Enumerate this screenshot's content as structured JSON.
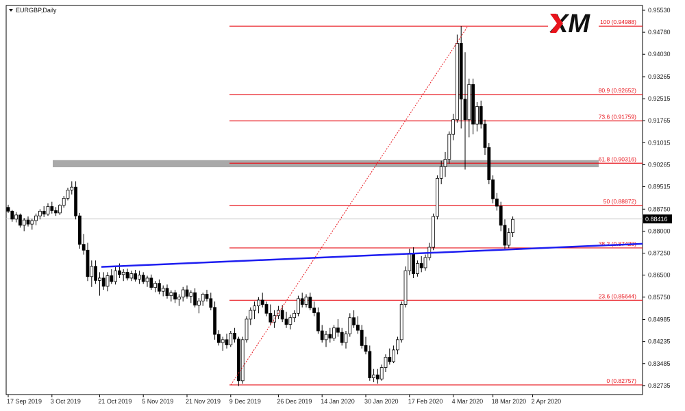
{
  "chart_data": {
    "type": "candlestick",
    "symbol_title": "EURGBP,Daily",
    "logo": "XM",
    "current_price": "0.88416",
    "ylim": [
      0.82662,
      0.9553
    ],
    "y_ticks": [
      "0.95530",
      "0.94780",
      "0.94030",
      "0.93265",
      "0.92515",
      "0.91765",
      "0.91015",
      "0.90265",
      "0.89515",
      "0.88750",
      "0.88000",
      "0.87250",
      "0.86500",
      "0.85750",
      "0.84985",
      "0.84235",
      "0.83485",
      "0.82735"
    ],
    "x_ticks": [
      "17 Sep 2019",
      "3 Oct 2019",
      "21 Oct 2019",
      "5 Nov 2019",
      "21 Nov 2019",
      "9 Dec 2019",
      "26 Dec 2019",
      "14 Jan 2020",
      "30 Jan 2020",
      "17 Feb 2020",
      "4 Mar 2020",
      "18 Mar 2020",
      "2 Apr 2020"
    ],
    "fib_levels": [
      {
        "label": "100 (0.94988)",
        "value": 0.94988
      },
      {
        "label": "80.9 (0.92652)",
        "value": 0.92652
      },
      {
        "label": "73.6 (0.91759)",
        "value": 0.91759
      },
      {
        "label": "61.8 (0.90316)",
        "value": 0.90316
      },
      {
        "label": "50 (0.88872)",
        "value": 0.88872
      },
      {
        "label": "38.2 (0.87428)",
        "value": 0.87428
      },
      {
        "label": "23.6 (0.85644)",
        "value": 0.85644
      },
      {
        "label": "0 (0.82757)",
        "value": 0.82757
      }
    ],
    "resistance_zone": [
      0.9018,
      0.9042
    ],
    "trendline": {
      "from": {
        "x": "21 Oct 2019",
        "y": 0.8678
      },
      "to": {
        "x": "7 Apr 2020",
        "y": 0.8757
      }
    },
    "fib_swing": {
      "from": {
        "x": "10 Dec 2019",
        "y": 0.82757
      },
      "to": {
        "x": "19 Mar 2020",
        "y": 0.94988
      }
    },
    "candles": [
      [
        0.8881,
        0.889,
        0.8862,
        0.8868
      ],
      [
        0.8868,
        0.8872,
        0.8832,
        0.8841
      ],
      [
        0.8841,
        0.8865,
        0.883,
        0.8855
      ],
      [
        0.8855,
        0.886,
        0.8812,
        0.882
      ],
      [
        0.882,
        0.8845,
        0.88,
        0.8838
      ],
      [
        0.8838,
        0.885,
        0.8816,
        0.8824
      ],
      [
        0.8824,
        0.8842,
        0.8805,
        0.8836
      ],
      [
        0.8836,
        0.886,
        0.882,
        0.8852
      ],
      [
        0.8852,
        0.8875,
        0.884,
        0.8868
      ],
      [
        0.8868,
        0.8885,
        0.8848,
        0.8858
      ],
      [
        0.8858,
        0.8895,
        0.8852,
        0.8884
      ],
      [
        0.8884,
        0.89,
        0.886,
        0.887
      ],
      [
        0.887,
        0.8882,
        0.8852,
        0.8862
      ],
      [
        0.8862,
        0.8892,
        0.8855,
        0.8888
      ],
      [
        0.8888,
        0.892,
        0.888,
        0.8912
      ],
      [
        0.8912,
        0.8948,
        0.8905,
        0.894
      ],
      [
        0.894,
        0.897,
        0.8925,
        0.895
      ],
      [
        0.895,
        0.897,
        0.884,
        0.8852
      ],
      [
        0.8852,
        0.8862,
        0.874,
        0.8755
      ],
      [
        0.8755,
        0.879,
        0.872,
        0.8735
      ],
      [
        0.8735,
        0.876,
        0.863,
        0.8645
      ],
      [
        0.8645,
        0.87,
        0.861,
        0.868
      ],
      [
        0.868,
        0.87,
        0.862,
        0.8632
      ],
      [
        0.8632,
        0.866,
        0.858,
        0.864
      ],
      [
        0.864,
        0.866,
        0.86,
        0.8612
      ],
      [
        0.8612,
        0.866,
        0.8595,
        0.8648
      ],
      [
        0.8648,
        0.867,
        0.862,
        0.8628
      ],
      [
        0.8628,
        0.868,
        0.8618,
        0.8665
      ],
      [
        0.8665,
        0.869,
        0.864,
        0.8652
      ],
      [
        0.8652,
        0.867,
        0.863,
        0.866
      ],
      [
        0.866,
        0.8672,
        0.8632,
        0.864
      ],
      [
        0.864,
        0.8665,
        0.863,
        0.8655
      ],
      [
        0.8655,
        0.8668,
        0.8628,
        0.8636
      ],
      [
        0.8636,
        0.8665,
        0.862,
        0.865
      ],
      [
        0.865,
        0.866,
        0.862,
        0.8628
      ],
      [
        0.8628,
        0.8648,
        0.861,
        0.864
      ],
      [
        0.864,
        0.8652,
        0.86,
        0.8608
      ],
      [
        0.8608,
        0.863,
        0.8592,
        0.8622
      ],
      [
        0.8622,
        0.8635,
        0.8585,
        0.8595
      ],
      [
        0.8595,
        0.8615,
        0.8578,
        0.8605
      ],
      [
        0.8605,
        0.8618,
        0.857,
        0.858
      ],
      [
        0.858,
        0.8598,
        0.856,
        0.859
      ],
      [
        0.859,
        0.86,
        0.8555,
        0.8568
      ],
      [
        0.8568,
        0.8585,
        0.8545,
        0.8575
      ],
      [
        0.8575,
        0.861,
        0.856,
        0.86
      ],
      [
        0.86,
        0.8615,
        0.857,
        0.8578
      ],
      [
        0.8578,
        0.8598,
        0.8555,
        0.859
      ],
      [
        0.859,
        0.8605,
        0.854,
        0.8548
      ],
      [
        0.8548,
        0.8572,
        0.852,
        0.8562
      ],
      [
        0.8562,
        0.859,
        0.8545,
        0.8585
      ],
      [
        0.8585,
        0.86,
        0.856,
        0.857
      ],
      [
        0.857,
        0.859,
        0.853,
        0.854
      ],
      [
        0.854,
        0.856,
        0.843,
        0.8448
      ],
      [
        0.8448,
        0.8462,
        0.841,
        0.842
      ],
      [
        0.842,
        0.844,
        0.8392,
        0.843
      ],
      [
        0.843,
        0.845,
        0.84,
        0.8412
      ],
      [
        0.8412,
        0.846,
        0.8405,
        0.8452
      ],
      [
        0.8452,
        0.847,
        0.842,
        0.8432
      ],
      [
        0.8432,
        0.844,
        0.8272,
        0.829
      ],
      [
        0.829,
        0.844,
        0.828,
        0.843
      ],
      [
        0.843,
        0.851,
        0.842,
        0.85
      ],
      [
        0.85,
        0.854,
        0.848,
        0.853
      ],
      [
        0.853,
        0.856,
        0.85,
        0.8545
      ],
      [
        0.8545,
        0.8575,
        0.852,
        0.8565
      ],
      [
        0.8565,
        0.859,
        0.854,
        0.855
      ],
      [
        0.855,
        0.856,
        0.851,
        0.852
      ],
      [
        0.852,
        0.855,
        0.848,
        0.849
      ],
      [
        0.849,
        0.853,
        0.847,
        0.8512
      ],
      [
        0.8512,
        0.8545,
        0.85,
        0.853
      ],
      [
        0.853,
        0.8548,
        0.849,
        0.85
      ],
      [
        0.85,
        0.8525,
        0.847,
        0.8482
      ],
      [
        0.8482,
        0.8515,
        0.8465,
        0.8505
      ],
      [
        0.8505,
        0.853,
        0.849,
        0.852
      ],
      [
        0.852,
        0.858,
        0.851,
        0.857
      ],
      [
        0.857,
        0.859,
        0.854,
        0.855
      ],
      [
        0.855,
        0.8585,
        0.854,
        0.8575
      ],
      [
        0.8575,
        0.859,
        0.853,
        0.8538
      ],
      [
        0.8538,
        0.856,
        0.851,
        0.8522
      ],
      [
        0.8522,
        0.854,
        0.845,
        0.846
      ],
      [
        0.846,
        0.848,
        0.842,
        0.843
      ],
      [
        0.843,
        0.846,
        0.8405,
        0.8448
      ],
      [
        0.8448,
        0.847,
        0.842,
        0.8435
      ],
      [
        0.8435,
        0.848,
        0.8425,
        0.847
      ],
      [
        0.847,
        0.85,
        0.844,
        0.8455
      ],
      [
        0.8455,
        0.847,
        0.841,
        0.842
      ],
      [
        0.842,
        0.846,
        0.84,
        0.845
      ],
      [
        0.845,
        0.852,
        0.844,
        0.8505
      ],
      [
        0.8505,
        0.853,
        0.847,
        0.848
      ],
      [
        0.848,
        0.851,
        0.845,
        0.8462
      ],
      [
        0.8462,
        0.848,
        0.84,
        0.841
      ],
      [
        0.841,
        0.844,
        0.838,
        0.839
      ],
      [
        0.839,
        0.841,
        0.829,
        0.83
      ],
      [
        0.83,
        0.833,
        0.8285,
        0.831
      ],
      [
        0.831,
        0.833,
        0.828,
        0.8296
      ],
      [
        0.8296,
        0.8345,
        0.829,
        0.8335
      ],
      [
        0.8335,
        0.838,
        0.832,
        0.837
      ],
      [
        0.837,
        0.84,
        0.8345,
        0.8355
      ],
      [
        0.8355,
        0.841,
        0.835,
        0.8395
      ],
      [
        0.8395,
        0.844,
        0.838,
        0.843
      ],
      [
        0.843,
        0.856,
        0.842,
        0.855
      ],
      [
        0.855,
        0.868,
        0.854,
        0.8665
      ],
      [
        0.8665,
        0.874,
        0.865,
        0.8725
      ],
      [
        0.8725,
        0.8745,
        0.864,
        0.8655
      ],
      [
        0.8655,
        0.87,
        0.8645,
        0.869
      ],
      [
        0.869,
        0.8715,
        0.866,
        0.8675
      ],
      [
        0.8675,
        0.872,
        0.8665,
        0.871
      ],
      [
        0.871,
        0.876,
        0.87,
        0.8745
      ],
      [
        0.8745,
        0.886,
        0.8735,
        0.885
      ],
      [
        0.885,
        0.899,
        0.884,
        0.898
      ],
      [
        0.898,
        0.904,
        0.896,
        0.902
      ],
      [
        0.902,
        0.907,
        0.8985,
        0.9045
      ],
      [
        0.9045,
        0.914,
        0.903,
        0.913
      ],
      [
        0.913,
        0.92,
        0.911,
        0.918
      ],
      [
        0.918,
        0.947,
        0.917,
        0.944
      ],
      [
        0.944,
        0.9499,
        0.915,
        0.925
      ],
      [
        0.925,
        0.941,
        0.901,
        0.918
      ],
      [
        0.918,
        0.932,
        0.912,
        0.93
      ],
      [
        0.93,
        0.932,
        0.913,
        0.9165
      ],
      [
        0.9165,
        0.924,
        0.914,
        0.9225
      ],
      [
        0.9225,
        0.9245,
        0.915,
        0.9165
      ],
      [
        0.9165,
        0.918,
        0.906,
        0.9085
      ],
      [
        0.9085,
        0.91,
        0.896,
        0.8975
      ],
      [
        0.8975,
        0.899,
        0.8895,
        0.891
      ],
      [
        0.891,
        0.893,
        0.887,
        0.8885
      ],
      [
        0.8885,
        0.89,
        0.88,
        0.882
      ],
      [
        0.882,
        0.884,
        0.874,
        0.8752
      ],
      [
        0.8752,
        0.881,
        0.8742,
        0.8795
      ],
      [
        0.8795,
        0.885,
        0.878,
        0.884
      ]
    ]
  }
}
